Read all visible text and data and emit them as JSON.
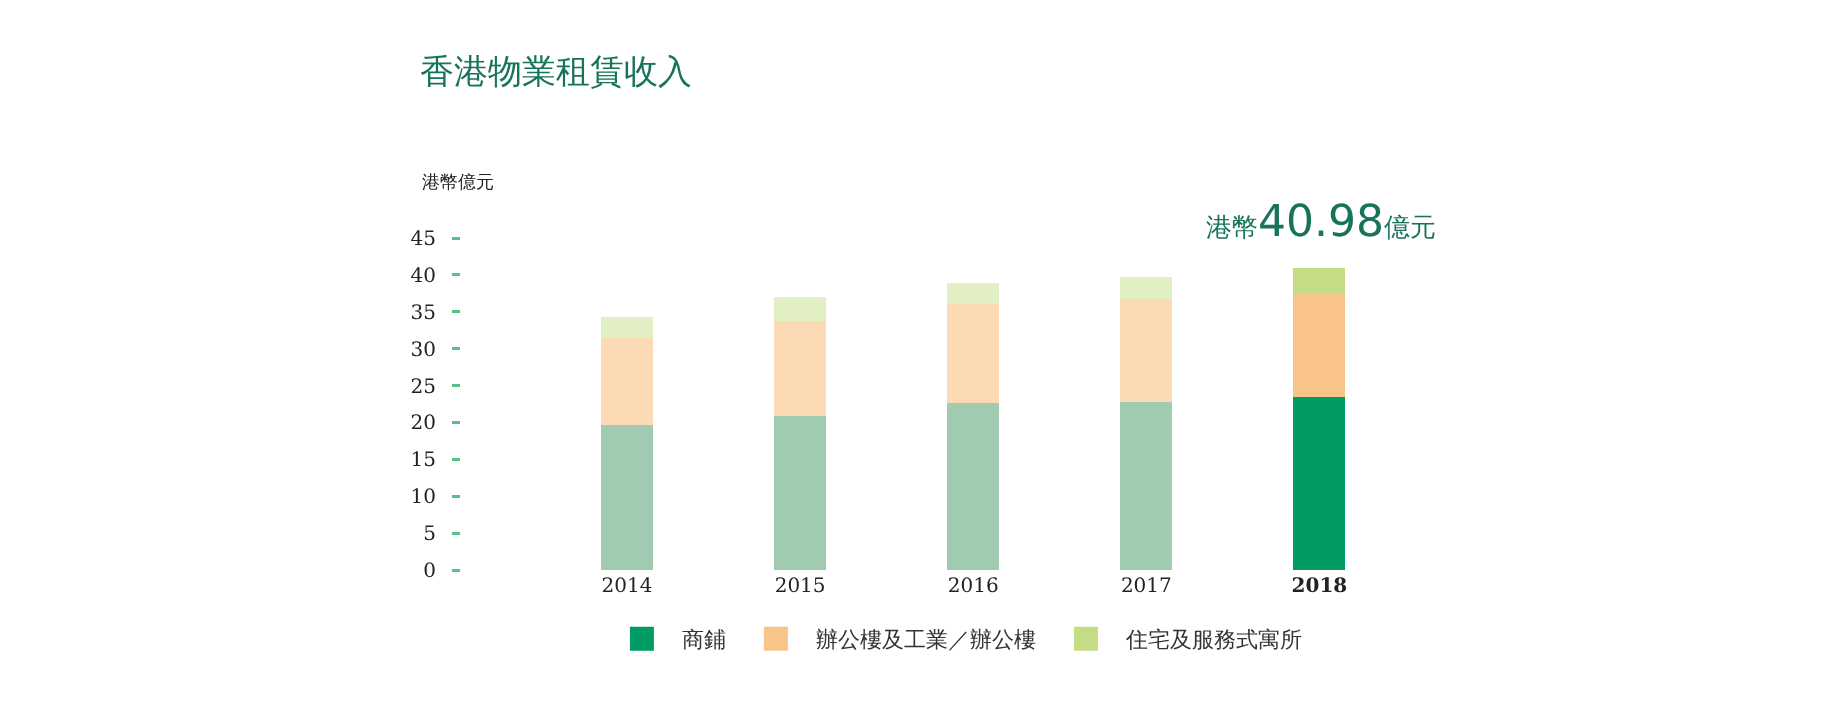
{
  "chart_data": {
    "type": "bar",
    "title": "香港物業租賃收入",
    "ylabel": "港幣億元",
    "categories": [
      "2014",
      "2015",
      "2016",
      "2017",
      "2018"
    ],
    "stacked": true,
    "ylim": [
      0,
      45
    ],
    "yticks": [
      0,
      5,
      10,
      15,
      20,
      25,
      30,
      35,
      40,
      45
    ],
    "grid": false,
    "legend": "bottom",
    "series": [
      {
        "name": "商鋪",
        "color": "#009c64",
        "colors": [
          "#a0cbb0",
          "#a0cbb0",
          "#a0cbb0",
          "#a0cbb0",
          "#009c64"
        ],
        "values": [
          19.7,
          20.9,
          22.7,
          22.8,
          23.4
        ]
      },
      {
        "name": "辦公樓及工業／辦公樓",
        "color": "#f8c489",
        "colors": [
          "#fcdbb4",
          "#fcdbb4",
          "#fcdbb4",
          "#fcdbb4",
          "#f8c489"
        ],
        "values": [
          11.7,
          12.9,
          13.3,
          13.9,
          14.2
        ]
      },
      {
        "name": "住宅及服務式寓所",
        "color": "#c4dc84",
        "colors": [
          "#e2efc4",
          "#e2efc4",
          "#e2efc4",
          "#e2efc4",
          "#c4dc84"
        ],
        "values": [
          2.9,
          3.2,
          2.9,
          3.0,
          3.38
        ]
      }
    ],
    "annotations": [
      {
        "text": "港幣40.98億元",
        "x": "2018",
        "y": 40.98
      }
    ]
  }
}
